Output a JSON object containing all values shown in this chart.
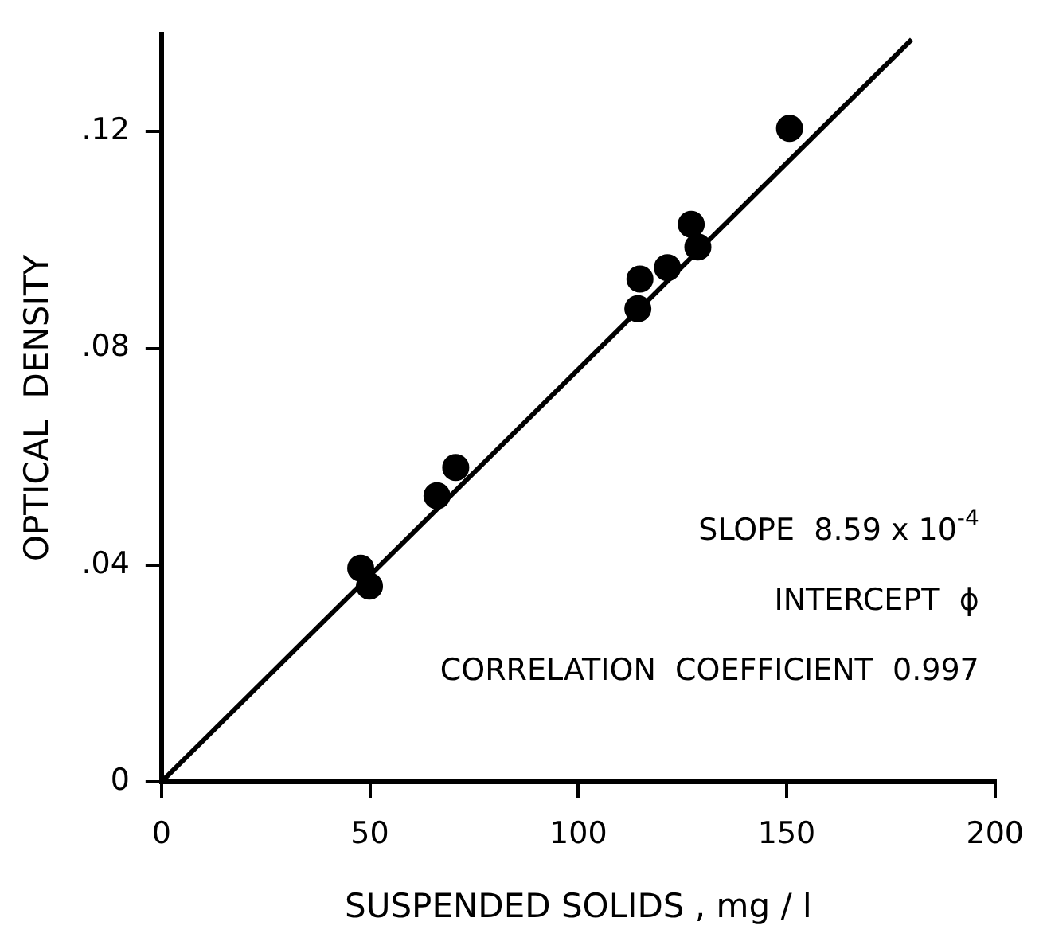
{
  "chart_data": {
    "type": "scatter",
    "xlabel": "SUSPENDED SOLIDS , mg / l",
    "ylabel": "OPTICAL  DENSITY",
    "xlim": [
      0,
      200
    ],
    "ylim": [
      0,
      0.138
    ],
    "xticks": [
      0,
      50,
      100,
      150,
      200
    ],
    "yticks": [
      0,
      {
        "value": 0.04,
        "label": ".04"
      },
      {
        "value": 0.08,
        "label": ".08"
      },
      {
        "value": 0.12,
        "label": ".12"
      }
    ],
    "grid": false,
    "legend": false,
    "marker": "circle",
    "series": [
      {
        "color": "#000000",
        "x": [
          47.8,
          49.9,
          66.1,
          70.6,
          114.3,
          114.8,
          121.4,
          127.1,
          128.7,
          150.7
        ],
        "values": [
          0.0394,
          0.0361,
          0.0528,
          0.058,
          0.0873,
          0.0928,
          0.0949,
          0.1029,
          0.0987,
          0.1206
        ]
      },
      {
        "type": "line",
        "color": "#000000",
        "marker": "none",
        "line_style": "solid",
        "x": [
          0,
          180
        ],
        "values": [
          0,
          0.137
        ]
      }
    ],
    "annotations": [
      "SLOPE  8.59 x 10$^{-4}$",
      "INTERCEPT  ϕ",
      "CORRELATION  COEFFICIENT  0.997"
    ]
  }
}
